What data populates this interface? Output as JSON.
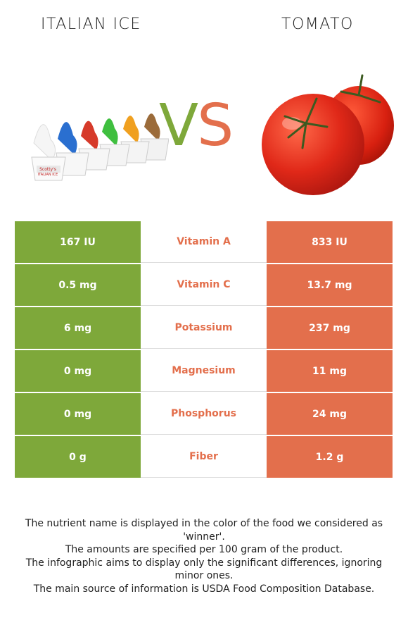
{
  "header": {
    "left_title": "ITALIAN ICE",
    "right_title": "TOMATO",
    "vs_v": "V",
    "vs_s": "S"
  },
  "images": {
    "left_logo_text_1": "Scotty's",
    "left_logo_text_2": "ITALIAN ICE"
  },
  "colors": {
    "left_food": "#7ea83a",
    "right_food": "#e36f4c"
  },
  "rows": [
    {
      "nutrient": "Vitamin A",
      "left": "167 IU",
      "right": "833 IU"
    },
    {
      "nutrient": "Vitamin C",
      "left": "0.5 mg",
      "right": "13.7 mg"
    },
    {
      "nutrient": "Potassium",
      "left": "6 mg",
      "right": "237 mg"
    },
    {
      "nutrient": "Magnesium",
      "left": "0 mg",
      "right": "11 mg"
    },
    {
      "nutrient": "Phosphorus",
      "left": "0 mg",
      "right": "24 mg"
    },
    {
      "nutrient": "Fiber",
      "left": "0 g",
      "right": "1.2 g"
    }
  ],
  "footer": {
    "line1": "The nutrient name is displayed in the color of the food we considered as 'winner'.",
    "line2": "The amounts are specified per 100 gram of the product.",
    "line3": "The infographic aims to display only the significant differences, ignoring minor ones.",
    "line4": "The main source of information is USDA Food Composition Database."
  }
}
